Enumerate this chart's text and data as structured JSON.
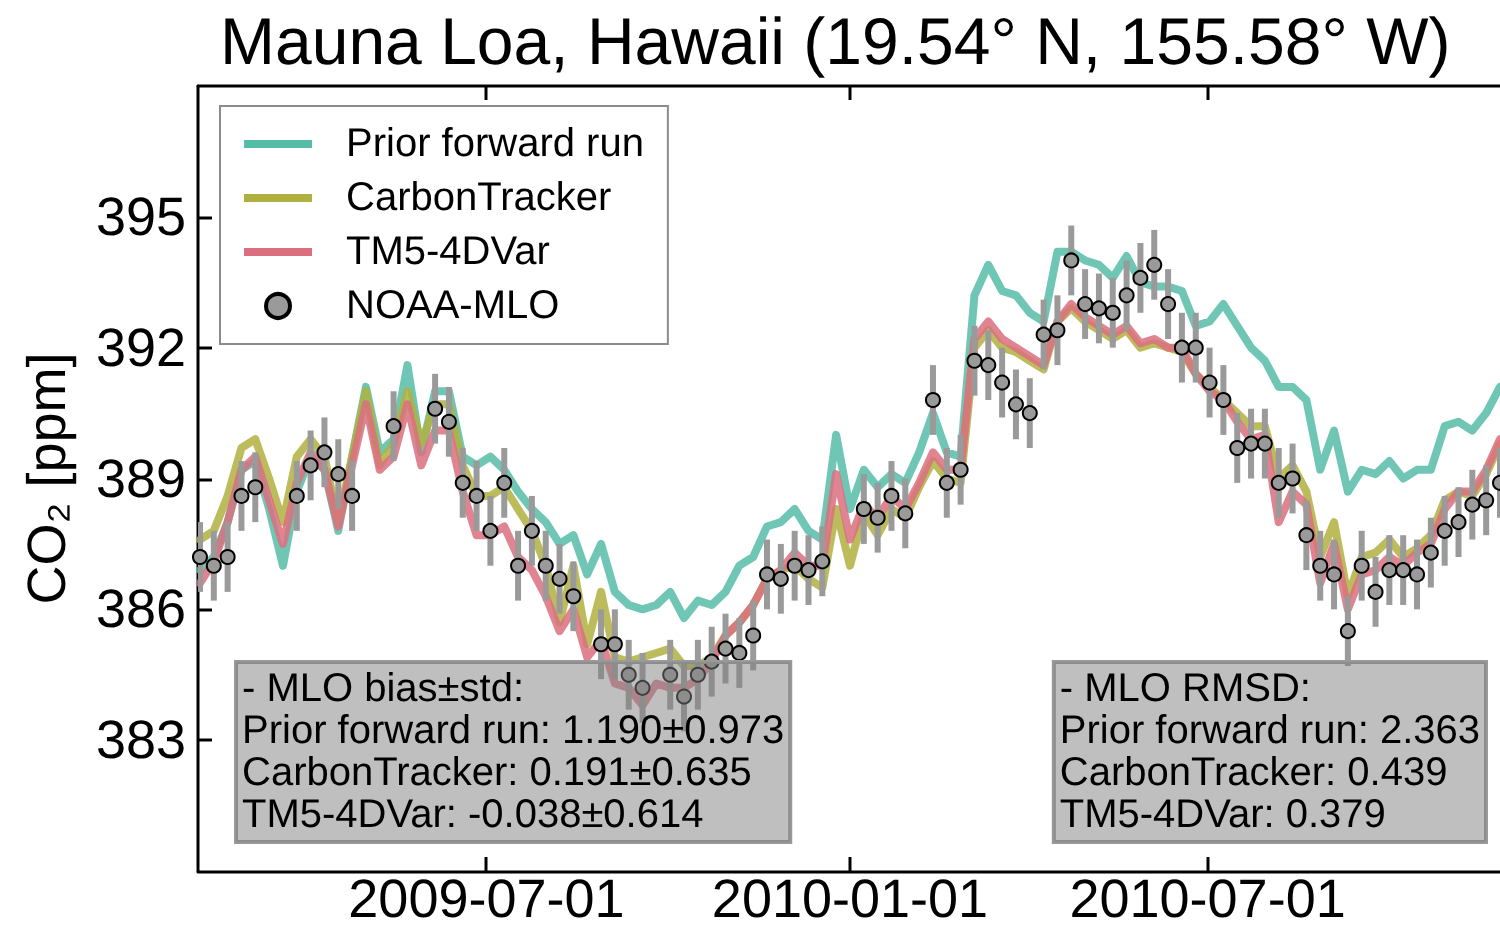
{
  "chart_data": {
    "type": "line",
    "title": "Mauna Loa, Hawaii (19.54° N, 155.58° W)",
    "ylabel": "CO₂ [ppm]",
    "x": [
      "2009-02-06",
      "2009-02-13",
      "2009-02-20",
      "2009-02-27",
      "2009-03-06",
      "2009-03-13",
      "2009-03-20",
      "2009-03-27",
      "2009-04-03",
      "2009-04-10",
      "2009-04-17",
      "2009-04-24",
      "2009-05-01",
      "2009-05-08",
      "2009-05-15",
      "2009-05-22",
      "2009-05-29",
      "2009-06-05",
      "2009-06-12",
      "2009-06-19",
      "2009-06-26",
      "2009-07-03",
      "2009-07-10",
      "2009-07-17",
      "2009-07-24",
      "2009-07-31",
      "2009-08-07",
      "2009-08-14",
      "2009-08-21",
      "2009-08-28",
      "2009-09-04",
      "2009-09-11",
      "2009-09-18",
      "2009-09-25",
      "2009-10-02",
      "2009-10-09",
      "2009-10-16",
      "2009-10-23",
      "2009-10-30",
      "2009-11-06",
      "2009-11-13",
      "2009-11-20",
      "2009-11-27",
      "2009-12-04",
      "2009-12-11",
      "2009-12-18",
      "2009-12-25",
      "2010-01-01",
      "2010-01-08",
      "2010-01-15",
      "2010-01-22",
      "2010-01-29",
      "2010-02-05",
      "2010-02-12",
      "2010-02-19",
      "2010-02-26",
      "2010-03-05",
      "2010-03-12",
      "2010-03-19",
      "2010-03-26",
      "2010-04-02",
      "2010-04-09",
      "2010-04-16",
      "2010-04-23",
      "2010-04-30",
      "2010-05-07",
      "2010-05-14",
      "2010-05-21",
      "2010-05-28",
      "2010-06-04",
      "2010-06-11",
      "2010-06-18",
      "2010-06-25",
      "2010-07-02",
      "2010-07-09",
      "2010-07-16",
      "2010-07-23",
      "2010-07-30",
      "2010-08-06",
      "2010-08-13",
      "2010-08-20",
      "2010-08-27",
      "2010-09-03",
      "2010-09-10",
      "2010-09-17",
      "2010-09-24",
      "2010-10-01",
      "2010-10-08",
      "2010-10-15",
      "2010-10-22",
      "2010-10-29",
      "2010-11-05",
      "2010-11-12",
      "2010-11-19",
      "2010-11-26"
    ],
    "series": [
      {
        "name": "Prior forward run",
        "color": "#56bca8",
        "values": [
          386.9,
          387.2,
          388.0,
          389.2,
          389.4,
          388.3,
          387.0,
          388.7,
          389.5,
          389.2,
          387.8,
          389.5,
          391.1,
          389.6,
          389.9,
          391.6,
          389.6,
          391.0,
          391.0,
          389.5,
          389.3,
          389.5,
          389.2,
          388.7,
          388.3,
          388.0,
          387.5,
          387.7,
          386.8,
          387.5,
          386.4,
          386.1,
          386.0,
          386.1,
          386.4,
          385.8,
          386.2,
          386.1,
          386.4,
          387.0,
          387.2,
          387.9,
          388.0,
          388.3,
          387.8,
          387.6,
          390.0,
          388.3,
          389.2,
          388.8,
          389.1,
          388.9,
          389.6,
          390.5,
          389.6,
          389.5,
          393.2,
          393.9,
          393.3,
          393.2,
          392.8,
          392.6,
          394.2,
          394.2,
          394.0,
          393.9,
          393.6,
          394.1,
          393.5,
          393.4,
          393.4,
          393.3,
          392.5,
          392.6,
          393.0,
          392.5,
          392.0,
          391.7,
          391.1,
          391.1,
          390.8,
          389.2,
          390.1,
          388.7,
          389.2,
          389.1,
          389.4,
          389.0,
          389.2,
          389.2,
          390.2,
          390.3,
          390.1,
          390.5,
          391.1
        ]
      },
      {
        "name": "CarbonTracker",
        "color": "#b0b040",
        "values": [
          387.6,
          387.8,
          388.6,
          389.7,
          389.9,
          389.0,
          388.0,
          389.5,
          389.9,
          389.5,
          388.0,
          389.5,
          391.0,
          389.3,
          389.8,
          391.0,
          389.8,
          390.7,
          390.7,
          389.3,
          388.6,
          388.6,
          388.8,
          388.3,
          387.8,
          387.0,
          385.7,
          387.0,
          385.2,
          386.4,
          384.9,
          384.8,
          384.9,
          385.0,
          385.1,
          384.7,
          384.7,
          384.9,
          385.4,
          385.7,
          386.1,
          386.7,
          386.9,
          387.0,
          386.7,
          386.5,
          388.3,
          387.0,
          388.2,
          387.7,
          388.3,
          388.1,
          388.8,
          389.4,
          389.0,
          388.9,
          392.0,
          392.4,
          392.0,
          391.9,
          391.7,
          391.5,
          392.6,
          392.9,
          392.6,
          392.4,
          392.2,
          392.4,
          392.0,
          392.1,
          392.0,
          391.9,
          391.4,
          391.1,
          390.8,
          390.5,
          390.2,
          390.2,
          389.0,
          389.3,
          388.7,
          387.2,
          388.0,
          386.3,
          387.2,
          387.3,
          387.6,
          387.2,
          387.4,
          387.7,
          388.5,
          388.7,
          388.6,
          389.1,
          389.8
        ]
      },
      {
        "name": "TM5-4DVar",
        "color": "#da6f7f",
        "values": [
          386.6,
          387.1,
          388.0,
          389.2,
          389.5,
          388.5,
          387.5,
          388.9,
          389.6,
          389.2,
          387.9,
          389.3,
          390.7,
          389.2,
          389.5,
          390.7,
          389.3,
          390.1,
          390.1,
          388.7,
          387.7,
          387.7,
          387.9,
          387.2,
          386.9,
          386.3,
          385.5,
          386.0,
          384.9,
          385.3,
          384.3,
          384.2,
          383.8,
          384.3,
          384.2,
          384.2,
          384.4,
          384.8,
          385.4,
          385.7,
          386.1,
          386.7,
          386.9,
          387.3,
          387.0,
          387.0,
          389.1,
          387.6,
          388.4,
          388.1,
          388.6,
          388.3,
          388.9,
          389.6,
          389.2,
          389.2,
          392.2,
          392.6,
          392.2,
          392.0,
          391.8,
          391.6,
          392.6,
          393.0,
          392.7,
          392.5,
          392.3,
          392.5,
          392.1,
          392.2,
          392.0,
          392.0,
          391.4,
          391.0,
          390.8,
          390.3,
          389.9,
          390.0,
          388.0,
          388.7,
          388.4,
          386.6,
          387.5,
          386.0,
          386.8,
          386.9,
          387.2,
          387.0,
          387.3,
          387.5,
          388.3,
          388.7,
          388.7,
          389.2,
          389.9
        ]
      },
      {
        "name": "NOAA-MLO",
        "type": "scatter",
        "marker": "circle",
        "color": "#9a9a9a",
        "values": [
          387.2,
          387.0,
          387.2,
          388.6,
          388.8,
          null,
          null,
          388.6,
          389.3,
          389.6,
          389.1,
          388.6,
          null,
          null,
          390.2,
          null,
          null,
          390.6,
          390.3,
          388.9,
          388.6,
          387.8,
          388.9,
          387.0,
          387.8,
          387.0,
          386.7,
          386.3,
          null,
          385.2,
          385.2,
          384.5,
          384.2,
          null,
          384.5,
          384.0,
          384.5,
          384.8,
          385.1,
          385.0,
          385.4,
          386.8,
          386.7,
          387.0,
          386.9,
          387.1,
          null,
          null,
          388.3,
          388.1,
          388.6,
          388.2,
          null,
          390.8,
          388.9,
          389.2,
          391.7,
          391.6,
          391.2,
          390.7,
          390.5,
          392.3,
          392.4,
          394.0,
          393.0,
          392.9,
          392.8,
          393.2,
          393.6,
          393.9,
          393.0,
          392.0,
          392.0,
          391.2,
          390.8,
          389.7,
          389.8,
          389.8,
          388.9,
          389.0,
          387.7,
          387.0,
          386.8,
          385.5,
          387.0,
          386.4,
          386.9,
          386.9,
          386.8,
          387.3,
          387.8,
          388.0,
          388.4,
          388.5,
          388.9
        ],
        "errors": [
          0.8,
          0.8,
          0.8,
          0.8,
          0.8,
          null,
          null,
          0.8,
          0.8,
          0.8,
          0.8,
          0.8,
          null,
          null,
          0.8,
          null,
          null,
          0.8,
          0.8,
          0.8,
          0.8,
          0.8,
          0.8,
          0.8,
          0.8,
          0.8,
          0.8,
          0.8,
          null,
          0.8,
          0.8,
          0.8,
          0.8,
          null,
          0.8,
          0.8,
          0.8,
          0.8,
          0.8,
          0.8,
          0.8,
          0.8,
          0.8,
          0.8,
          0.8,
          0.8,
          null,
          null,
          0.8,
          0.8,
          0.8,
          0.8,
          null,
          0.8,
          0.8,
          0.8,
          0.8,
          0.8,
          0.8,
          0.8,
          0.8,
          0.8,
          0.8,
          0.8,
          0.8,
          0.8,
          0.8,
          0.8,
          0.8,
          0.8,
          0.8,
          0.8,
          0.8,
          0.8,
          0.8,
          0.8,
          0.8,
          0.8,
          0.8,
          0.8,
          0.8,
          0.8,
          0.8,
          0.8,
          0.8,
          0.8,
          0.8,
          0.8,
          0.8,
          0.8,
          0.8,
          0.8,
          0.8,
          0.8,
          0.8
        ]
      }
    ],
    "xlim": [
      "2009-02-05",
      "2010-11-26"
    ],
    "xticks": [
      "2009-07-01",
      "2010-01-01",
      "2010-07-01"
    ],
    "ylim": [
      380,
      398
    ],
    "yticks": [
      383,
      386,
      389,
      392,
      395
    ],
    "legend": "top left",
    "annotations": [
      "- MLO bias±std:\nPrior forward run: 1.190±0.973\nCarbonTracker: 0.191±0.635\nTM5-4DVar: -0.038±0.614",
      "- MLO RMSD:\nPrior forward run: 2.363\nCarbonTracker: 0.439\nTM5-4DVar: 0.379"
    ]
  }
}
